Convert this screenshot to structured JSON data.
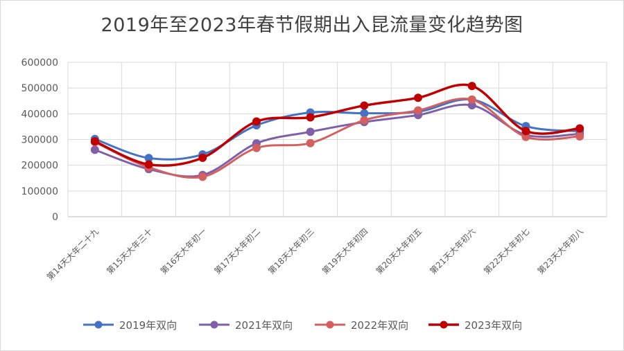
{
  "chart_data": {
    "type": "line",
    "title": "2019年至2023年春节假期出入昆流量变化趋势图",
    "xlabel": "",
    "ylabel": "",
    "ylim": [
      0,
      600000
    ],
    "yticks": [
      0,
      100000,
      200000,
      300000,
      400000,
      500000,
      600000
    ],
    "grid": true,
    "legend": "bottom",
    "categories": [
      "第14天大年二十九",
      "第15天大年三十",
      "第16天大年初一",
      "第17天大年初二",
      "第18天大年初三",
      "第19天大年初四",
      "第20天大年初五",
      "第21天大年初六",
      "第22天大年初七",
      "第23天大年初八"
    ],
    "series": [
      {
        "name": "2019年双向",
        "color": "#4472c4",
        "values": [
          302000,
          228000,
          242000,
          355000,
          405000,
          402000,
          408000,
          455000,
          352000,
          332000
        ]
      },
      {
        "name": "2021年双向",
        "color": "#7f5fa8",
        "values": [
          260000,
          185000,
          162000,
          285000,
          330000,
          368000,
          395000,
          433000,
          318000,
          322000
        ]
      },
      {
        "name": "2022年双向",
        "color": "#d35f5f",
        "values": [
          290000,
          192000,
          155000,
          267000,
          286000,
          375000,
          413000,
          455000,
          310000,
          312000
        ]
      },
      {
        "name": "2023年双向",
        "color": "#c00000",
        "values": [
          293000,
          203000,
          229000,
          370000,
          386000,
          432000,
          462000,
          508000,
          333000,
          343000
        ]
      }
    ]
  }
}
